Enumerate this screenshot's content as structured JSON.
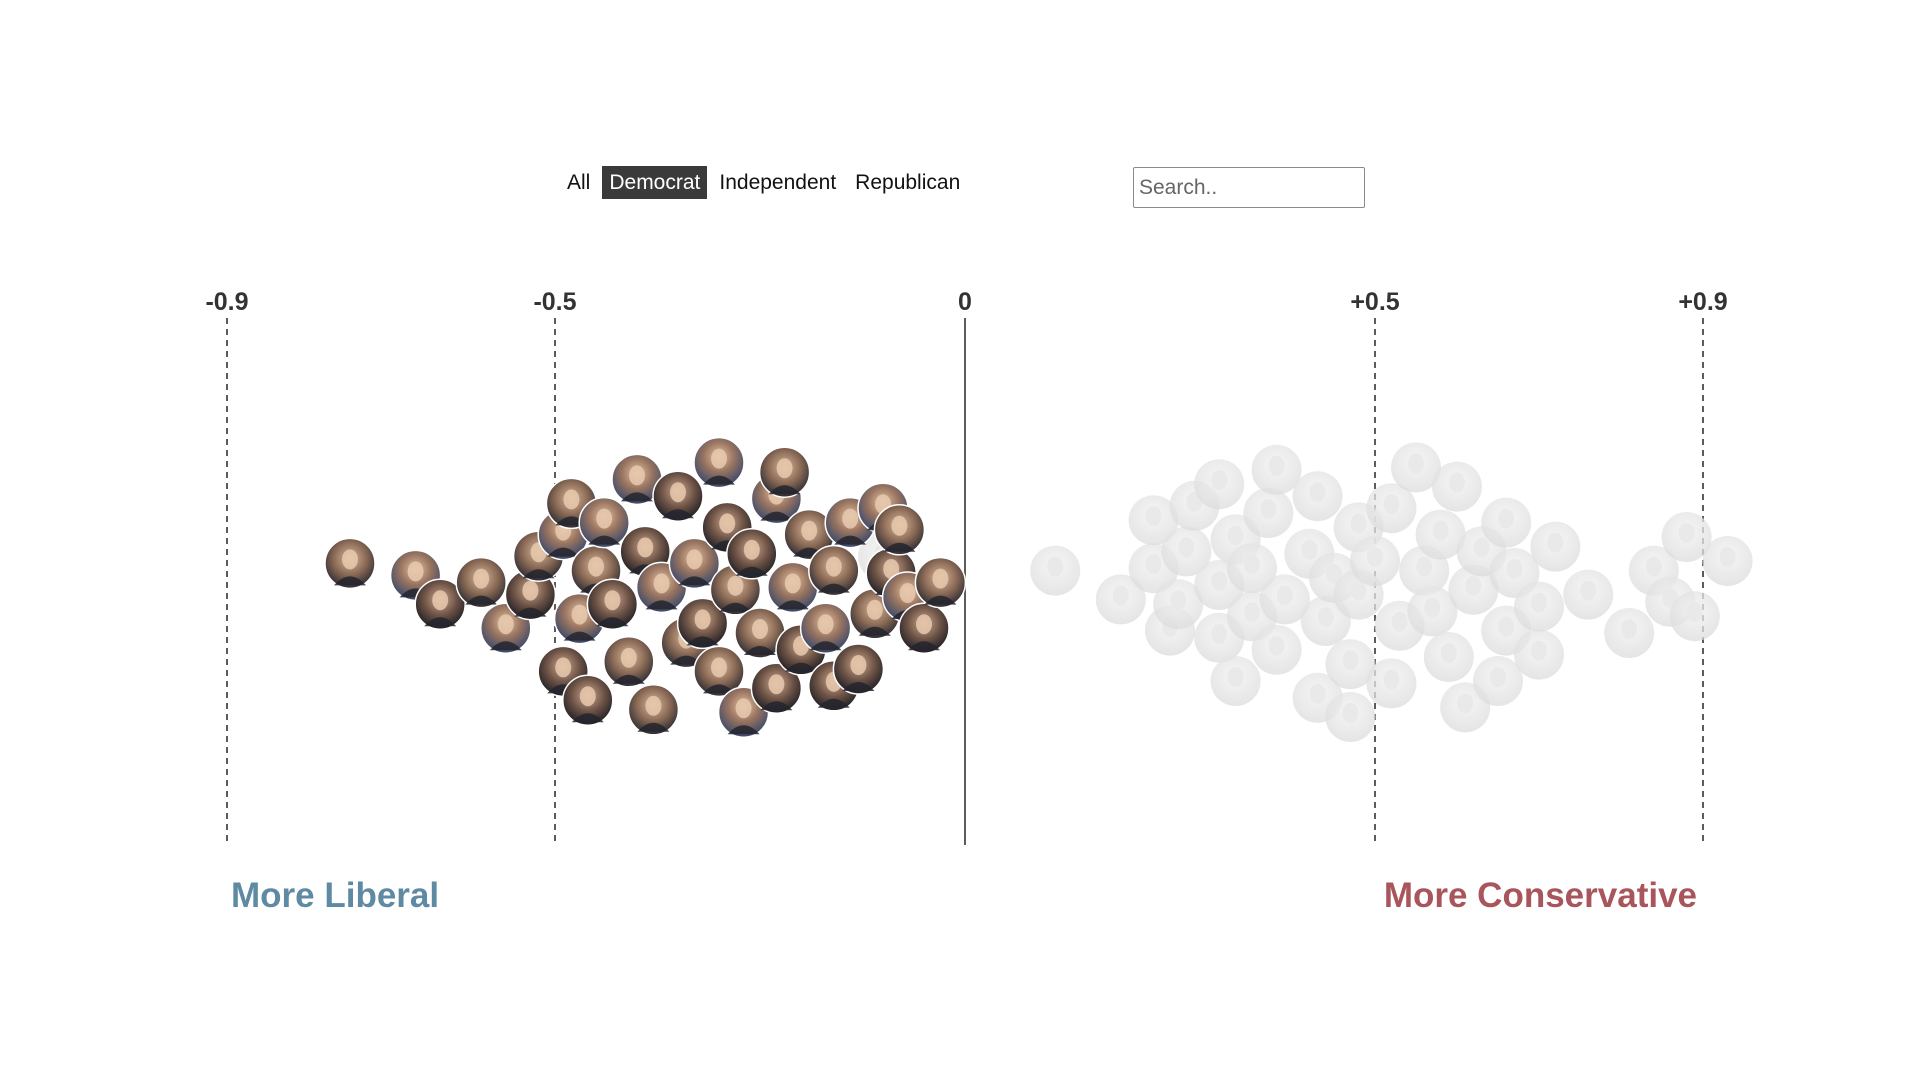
{
  "filters": {
    "items": [
      "All",
      "Democrat",
      "Independent",
      "Republican"
    ],
    "active": "Democrat"
  },
  "search": {
    "placeholder": "Search..",
    "value": ""
  },
  "annotations": {
    "liberal": "More Liberal",
    "conservative": "More Conservative"
  },
  "colors": {
    "liberal": "#5f8aa3",
    "conservative": "#a8555b",
    "active_filter_bg": "#3a3a3a",
    "axis": "#333333"
  },
  "chart_data": {
    "type": "scatter",
    "subtype": "beeswarm",
    "xlim": [
      -1.1,
      1.0
    ],
    "ticks": [
      {
        "value": -0.9,
        "label": "-0.9",
        "style": "dashed"
      },
      {
        "value": -0.5,
        "label": "-0.5",
        "style": "dashed"
      },
      {
        "value": 0,
        "label": "0",
        "style": "solid"
      },
      {
        "value": 0.5,
        "label": "+0.5",
        "style": "dashed"
      },
      {
        "value": 0.9,
        "label": "+0.9",
        "style": "dashed"
      }
    ],
    "highlighted_group": "Democrat",
    "series": [
      {
        "name": "Democrat",
        "highlighted": true,
        "points": [
          [
            -0.75,
            -0.09
          ],
          [
            -0.67,
            -0.04
          ],
          [
            -0.64,
            0.08
          ],
          [
            -0.59,
            -0.01
          ],
          [
            -0.56,
            0.18
          ],
          [
            -0.53,
            0.04
          ],
          [
            -0.52,
            -0.12
          ],
          [
            -0.49,
            -0.21
          ],
          [
            -0.49,
            0.36
          ],
          [
            -0.48,
            -0.34
          ],
          [
            -0.47,
            0.14
          ],
          [
            -0.46,
            0.48
          ],
          [
            -0.45,
            -0.06
          ],
          [
            -0.44,
            -0.26
          ],
          [
            -0.43,
            0.08
          ],
          [
            -0.41,
            0.32
          ],
          [
            -0.4,
            -0.44
          ],
          [
            -0.39,
            -0.14
          ],
          [
            -0.38,
            0.52
          ],
          [
            -0.37,
            0.01
          ],
          [
            -0.35,
            -0.37
          ],
          [
            -0.34,
            0.24
          ],
          [
            -0.33,
            -0.09
          ],
          [
            -0.32,
            0.16
          ],
          [
            -0.3,
            0.36
          ],
          [
            -0.3,
            -0.51
          ],
          [
            -0.29,
            -0.24
          ],
          [
            -0.28,
            0.02
          ],
          [
            -0.27,
            0.53
          ],
          [
            -0.26,
            -0.13
          ],
          [
            -0.25,
            0.2
          ],
          [
            -0.23,
            -0.36
          ],
          [
            -0.23,
            0.43
          ],
          [
            -0.22,
            -0.47
          ],
          [
            -0.21,
            0.01
          ],
          [
            -0.2,
            0.27
          ],
          [
            -0.19,
            -0.21
          ],
          [
            -0.17,
            0.18
          ],
          [
            -0.16,
            0.42
          ],
          [
            -0.16,
            -0.06
          ],
          [
            -0.14,
            -0.26
          ],
          [
            -0.13,
            0.35
          ],
          [
            -0.11,
            0.12
          ],
          [
            -0.1,
            -0.32
          ],
          [
            -0.09,
            -0.05
          ],
          [
            -0.08,
            -0.23
          ],
          [
            -0.07,
            0.05
          ],
          [
            -0.05,
            0.18
          ],
          [
            -0.03,
            -0.01
          ]
        ]
      },
      {
        "name": "Independent",
        "highlighted": false,
        "points": [
          [
            -0.56,
            0.18
          ],
          [
            -0.1,
            -0.12
          ]
        ]
      },
      {
        "name": "Republican",
        "highlighted": false,
        "points": [
          [
            0.11,
            -0.06
          ],
          [
            0.19,
            0.06
          ],
          [
            0.23,
            -0.07
          ],
          [
            0.23,
            -0.27
          ],
          [
            0.25,
            0.19
          ],
          [
            0.26,
            0.08
          ],
          [
            0.27,
            -0.14
          ],
          [
            0.28,
            -0.33
          ],
          [
            0.31,
            0.0
          ],
          [
            0.31,
            0.22
          ],
          [
            0.31,
            -0.42
          ],
          [
            0.33,
            -0.19
          ],
          [
            0.33,
            0.4
          ],
          [
            0.35,
            0.13
          ],
          [
            0.35,
            -0.07
          ],
          [
            0.37,
            -0.3
          ],
          [
            0.38,
            0.27
          ],
          [
            0.38,
            -0.48
          ],
          [
            0.39,
            0.06
          ],
          [
            0.42,
            -0.13
          ],
          [
            0.43,
            0.47
          ],
          [
            0.43,
            -0.37
          ],
          [
            0.44,
            0.15
          ],
          [
            0.45,
            -0.03
          ],
          [
            0.47,
            0.33
          ],
          [
            0.47,
            0.55
          ],
          [
            0.48,
            -0.24
          ],
          [
            0.48,
            0.04
          ],
          [
            0.5,
            -0.1
          ],
          [
            0.52,
            0.41
          ],
          [
            0.53,
            0.17
          ],
          [
            0.52,
            -0.32
          ],
          [
            0.55,
            -0.49
          ],
          [
            0.56,
            -0.06
          ],
          [
            0.58,
            -0.21
          ],
          [
            0.57,
            0.11
          ],
          [
            0.59,
            0.3
          ],
          [
            0.6,
            -0.41
          ],
          [
            0.61,
            0.51
          ],
          [
            0.62,
            0.02
          ],
          [
            0.63,
            -0.14
          ],
          [
            0.65,
            0.4
          ],
          [
            0.66,
            -0.26
          ],
          [
            0.66,
            0.19
          ],
          [
            0.67,
            -0.05
          ],
          [
            0.7,
            0.29
          ],
          [
            0.7,
            0.09
          ],
          [
            0.72,
            -0.16
          ],
          [
            0.76,
            0.04
          ],
          [
            0.81,
            0.2
          ],
          [
            0.84,
            -0.06
          ],
          [
            0.86,
            0.07
          ],
          [
            0.88,
            -0.2
          ],
          [
            0.89,
            0.13
          ],
          [
            0.93,
            -0.1
          ]
        ]
      }
    ]
  }
}
